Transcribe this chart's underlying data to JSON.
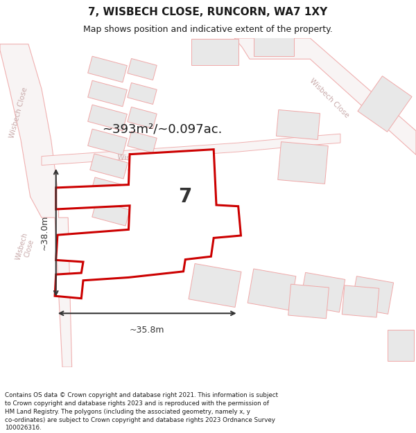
{
  "title": "7, WISBECH CLOSE, RUNCORN, WA7 1XY",
  "subtitle": "Map shows position and indicative extent of the property.",
  "area_label": "~393m²/~0.097ac.",
  "dim_width": "~35.8m",
  "dim_height": "~38.0m",
  "property_number": "7",
  "footer_lines": "Contains OS data © Crown copyright and database right 2021. This information is subject\nto Crown copyright and database rights 2023 and is reproduced with the permission of\nHM Land Registry. The polygons (including the associated geometry, namely x, y\nco-ordinates) are subject to Crown copyright and database rights 2023 Ordnance Survey\n100026316.",
  "bg_color": "#ffffff",
  "map_bg": "#ffffff",
  "road_line_color": "#f0b0b0",
  "building_fill": "#e8e8e8",
  "building_stroke": "#f0a8a8",
  "highlight_fill": "#ffffff",
  "highlight_stroke": "#cc0000",
  "road_label_color": "#c8aaaa",
  "title_color": "#1a1a1a",
  "footer_color": "#1a1a1a",
  "dim_line_color": "#333333"
}
